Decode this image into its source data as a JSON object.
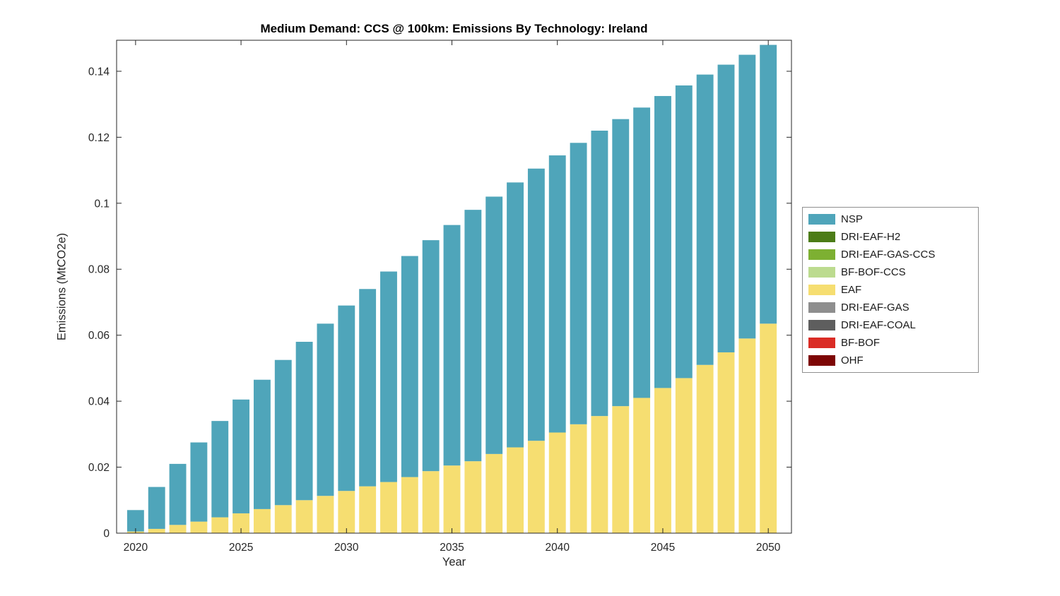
{
  "chart_data": {
    "type": "bar",
    "stacked": true,
    "title": "Medium Demand: CCS @ 100km: Emissions By Technology: Ireland",
    "xlabel": "Year",
    "ylabel": "Emissions (MtCO2e)",
    "xlim": [
      2019.1,
      2051.1
    ],
    "ylim": [
      0,
      0.1494
    ],
    "xticks": [
      2020,
      2025,
      2030,
      2035,
      2040,
      2045,
      2050
    ],
    "yticks": [
      0,
      0.02,
      0.04,
      0.06,
      0.08,
      0.1,
      0.12,
      0.14
    ],
    "ytick_labels": [
      "0",
      "0.02",
      "0.04",
      "0.06",
      "0.08",
      "0.1",
      "0.12",
      "0.14"
    ],
    "bar_width_years": 0.8,
    "grid": false,
    "legend_position": "right-outside",
    "x": [
      2020,
      2021,
      2022,
      2023,
      2024,
      2025,
      2026,
      2027,
      2028,
      2029,
      2030,
      2031,
      2032,
      2033,
      2034,
      2035,
      2036,
      2037,
      2038,
      2039,
      2040,
      2041,
      2042,
      2043,
      2044,
      2045,
      2046,
      2047,
      2048,
      2049,
      2050
    ],
    "series": [
      {
        "name": "EAF",
        "color": "#F6DE71",
        "values": [
          0.0005,
          0.0013,
          0.0025,
          0.0035,
          0.0048,
          0.006,
          0.0073,
          0.0085,
          0.01,
          0.0113,
          0.0128,
          0.0142,
          0.0155,
          0.017,
          0.0188,
          0.0205,
          0.0218,
          0.024,
          0.026,
          0.028,
          0.0305,
          0.033,
          0.0355,
          0.0385,
          0.041,
          0.044,
          0.047,
          0.051,
          0.0548,
          0.059,
          0.0635
        ]
      },
      {
        "name": "NSP",
        "color": "#4FA5BA",
        "values": [
          0.0065,
          0.0127,
          0.0185,
          0.024,
          0.0292,
          0.0345,
          0.0392,
          0.044,
          0.048,
          0.0522,
          0.0562,
          0.0598,
          0.0638,
          0.067,
          0.07,
          0.0729,
          0.0762,
          0.078,
          0.0803,
          0.0825,
          0.084,
          0.0853,
          0.0865,
          0.087,
          0.088,
          0.0885,
          0.0887,
          0.088,
          0.0872,
          0.086,
          0.0845
        ]
      }
    ],
    "other_series_all_zero": [
      "DRI-EAF-H2",
      "DRI-EAF-GAS-CCS",
      "BF-BOF-CCS",
      "DRI-EAF-GAS",
      "DRI-EAF-COAL",
      "BF-BOF",
      "OHF"
    ],
    "legend": [
      {
        "label": "NSP",
        "color": "#4FA5BA"
      },
      {
        "label": "DRI-EAF-H2",
        "color": "#4C7C17"
      },
      {
        "label": "DRI-EAF-GAS-CCS",
        "color": "#7DB032"
      },
      {
        "label": "BF-BOF-CCS",
        "color": "#BCDB8F"
      },
      {
        "label": "EAF",
        "color": "#F6DE71"
      },
      {
        "label": "DRI-EAF-GAS",
        "color": "#8E8E8E"
      },
      {
        "label": "DRI-EAF-COAL",
        "color": "#5E5E5E"
      },
      {
        "label": "BF-BOF",
        "color": "#DA2C25"
      },
      {
        "label": "OHF",
        "color": "#7D0605"
      }
    ],
    "axis_color": "#262626"
  }
}
